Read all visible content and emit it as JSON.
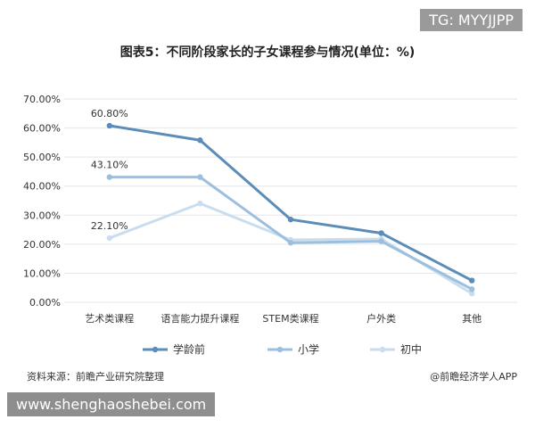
{
  "banner": {
    "text": "TG: MYYJJPP"
  },
  "footer": {
    "source": "资料来源：前瞻产业研究院整理",
    "credit": "@前瞻经济学人APP",
    "watermark_url": "www.shenghaoshebei.com"
  },
  "colors": {
    "series_0": "#5b8db8",
    "series_1": "#9dbfdf",
    "series_2": "#c9ddef",
    "grid": "#e6e6e6",
    "axis_text": "#333333"
  },
  "chart_data": {
    "type": "line",
    "title": "图表5：不同阶段家长的子女课程参与情况(单位：%)",
    "categories": [
      "艺术类课程",
      "语言能力提升课程",
      "STEM类课程",
      "户外类",
      "其他"
    ],
    "y_ticks": [
      "0.00%",
      "10.00%",
      "20.00%",
      "30.00%",
      "40.00%",
      "50.00%",
      "60.00%",
      "70.00%"
    ],
    "ylim": [
      0,
      70
    ],
    "grid": true,
    "legend_position": "bottom",
    "series": [
      {
        "name": "学龄前",
        "values": [
          60.8,
          55.8,
          28.5,
          23.8,
          7.5
        ]
      },
      {
        "name": "小学",
        "values": [
          43.1,
          43.1,
          20.5,
          21.0,
          4.5
        ]
      },
      {
        "name": "初中",
        "values": [
          22.1,
          34.0,
          21.5,
          21.8,
          3.0
        ]
      }
    ],
    "data_labels": [
      {
        "series": 0,
        "index": 0,
        "text": "60.80%"
      },
      {
        "series": 1,
        "index": 0,
        "text": "43.10%"
      },
      {
        "series": 2,
        "index": 0,
        "text": "22.10%"
      }
    ]
  }
}
